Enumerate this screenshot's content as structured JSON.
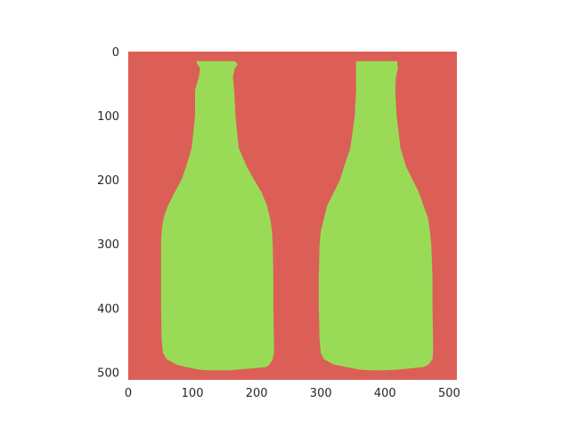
{
  "chart_data": {
    "type": "heatmap",
    "title": "",
    "xlabel": "",
    "ylabel": "",
    "xlim": [
      0,
      512
    ],
    "ylim": [
      512,
      0
    ],
    "grid": false,
    "x_ticks": [
      0,
      100,
      200,
      300,
      400,
      500
    ],
    "y_ticks": [
      0,
      100,
      200,
      300,
      400,
      500
    ],
    "x_tick_labels": [
      "0",
      "100",
      "200",
      "300",
      "400",
      "500"
    ],
    "y_tick_labels": [
      "0",
      "100",
      "200",
      "300",
      "400",
      "500"
    ],
    "classes": [
      {
        "value": 0,
        "color": "#db5f57"
      },
      {
        "value": 1,
        "color": "#99db57"
      }
    ],
    "regions": [
      {
        "class": 1,
        "rows": [
          [
            15,
            106,
            166
          ],
          [
            20,
            108,
            171
          ],
          [
            26,
            112,
            166
          ],
          [
            40,
            110,
            163
          ],
          [
            60,
            104,
            165
          ],
          [
            100,
            104,
            167
          ],
          [
            150,
            99,
            172
          ],
          [
            180,
            90,
            185
          ],
          [
            200,
            83,
            196
          ],
          [
            220,
            72,
            208
          ],
          [
            240,
            62,
            216
          ],
          [
            260,
            55,
            221
          ],
          [
            280,
            52,
            224
          ],
          [
            300,
            51,
            225
          ],
          [
            350,
            51,
            226
          ],
          [
            400,
            51,
            226
          ],
          [
            450,
            52,
            227
          ],
          [
            470,
            54,
            227
          ],
          [
            480,
            60,
            225
          ],
          [
            488,
            75,
            220
          ],
          [
            492,
            90,
            215
          ],
          [
            496,
            110,
            170
          ],
          [
            497,
            125,
            160
          ]
        ]
      },
      {
        "class": 1,
        "rows": [
          [
            15,
            355,
            419
          ],
          [
            26,
            355,
            420
          ],
          [
            40,
            355,
            417
          ],
          [
            60,
            355,
            416
          ],
          [
            100,
            353,
            418
          ],
          [
            150,
            346,
            424
          ],
          [
            180,
            336,
            433
          ],
          [
            200,
            330,
            443
          ],
          [
            220,
            320,
            453
          ],
          [
            240,
            310,
            460
          ],
          [
            260,
            305,
            467
          ],
          [
            280,
            300,
            470
          ],
          [
            300,
            298,
            472
          ],
          [
            350,
            297,
            474
          ],
          [
            400,
            297,
            474
          ],
          [
            450,
            298,
            475
          ],
          [
            470,
            300,
            475
          ],
          [
            480,
            305,
            474
          ],
          [
            488,
            320,
            468
          ],
          [
            492,
            340,
            460
          ],
          [
            496,
            360,
            420
          ],
          [
            497,
            380,
            400
          ]
        ]
      }
    ]
  }
}
